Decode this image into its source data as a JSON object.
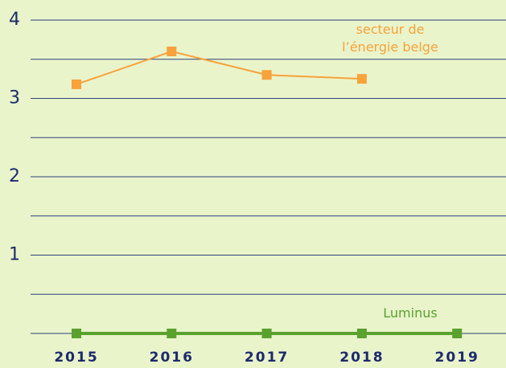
{
  "chart_data": {
    "type": "line",
    "categories": [
      "2015",
      "2016",
      "2017",
      "2018",
      "2019"
    ],
    "series": [
      {
        "name": "secteur de l’énergie belge",
        "color": "#f7a23b",
        "values": [
          3.18,
          3.6,
          3.3,
          3.25,
          null
        ]
      },
      {
        "name": "Luminus",
        "color": "#5aa12e",
        "values": [
          0,
          0,
          0,
          0,
          0
        ]
      }
    ],
    "ylim": [
      0,
      4
    ],
    "yticks": [
      1,
      2,
      3,
      4
    ],
    "ygrid": [
      0,
      0.5,
      1,
      1.5,
      2,
      2.5,
      3,
      3.5,
      4
    ]
  }
}
